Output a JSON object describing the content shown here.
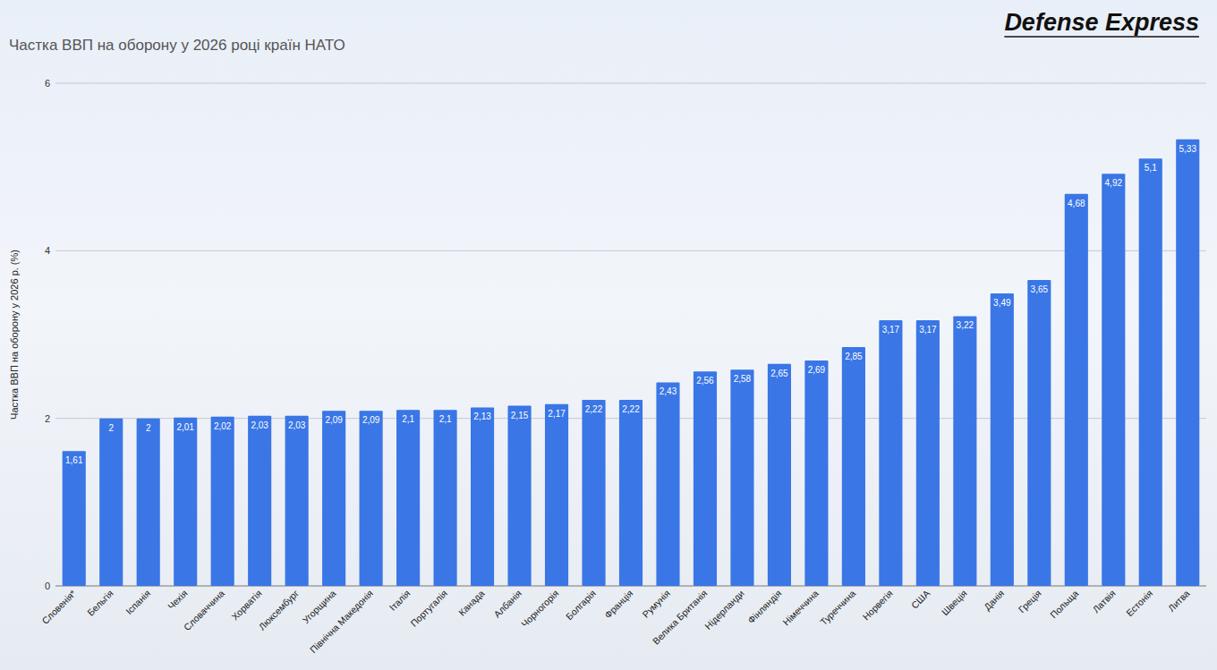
{
  "chart_data": {
    "type": "bar",
    "title": "Частка ВВП на оборону у 2026 році країн НАТО",
    "source": "Defense Express",
    "y_label": "Частка ВВП на оборону у 2026 р. (%)",
    "categories": [
      "Словенія*",
      "Бельгія",
      "Іспанія",
      "Чехія",
      "Словаччина",
      "Хорватія",
      "Люксембург",
      "Угорщина",
      "Північна Македонія",
      "Італія",
      "Португалія",
      "Канада",
      "Албанія",
      "Чорногорія",
      "Болгарія",
      "Франція",
      "Румунія",
      "Велика Британія",
      "Нідерланди",
      "Фінляндія",
      "Німеччина",
      "Туреччина",
      "Норвегія",
      "США",
      "Швеція",
      "Данія",
      "Греція",
      "Польща",
      "Латвія",
      "Естонія",
      "Литва"
    ],
    "values": [
      1.61,
      2,
      2,
      2.01,
      2.02,
      2.03,
      2.03,
      2.09,
      2.09,
      2.1,
      2.1,
      2.13,
      2.15,
      2.17,
      2.22,
      2.22,
      2.43,
      2.56,
      2.58,
      2.65,
      2.69,
      2.85,
      3.17,
      3.17,
      3.22,
      3.49,
      3.65,
      4.68,
      4.92,
      5.1,
      5.33
    ],
    "value_labels": [
      "1,61",
      "2",
      "2",
      "2,01",
      "2,02",
      "2,03",
      "2,03",
      "2,09",
      "2,09",
      "2,1",
      "2,1",
      "2,13",
      "2,15",
      "2,17",
      "2,22",
      "2,22",
      "2,43",
      "2,56",
      "2,58",
      "2,65",
      "2,69",
      "2,85",
      "3,17",
      "3,17",
      "3,22",
      "3,49",
      "3,65",
      "4,68",
      "4,92",
      "5,1",
      "5,33"
    ],
    "color": "#3a76e6",
    "ylim": [
      0,
      6
    ],
    "yticks": [
      0,
      2,
      4,
      6
    ],
    "grid": true,
    "data_labels": true
  }
}
